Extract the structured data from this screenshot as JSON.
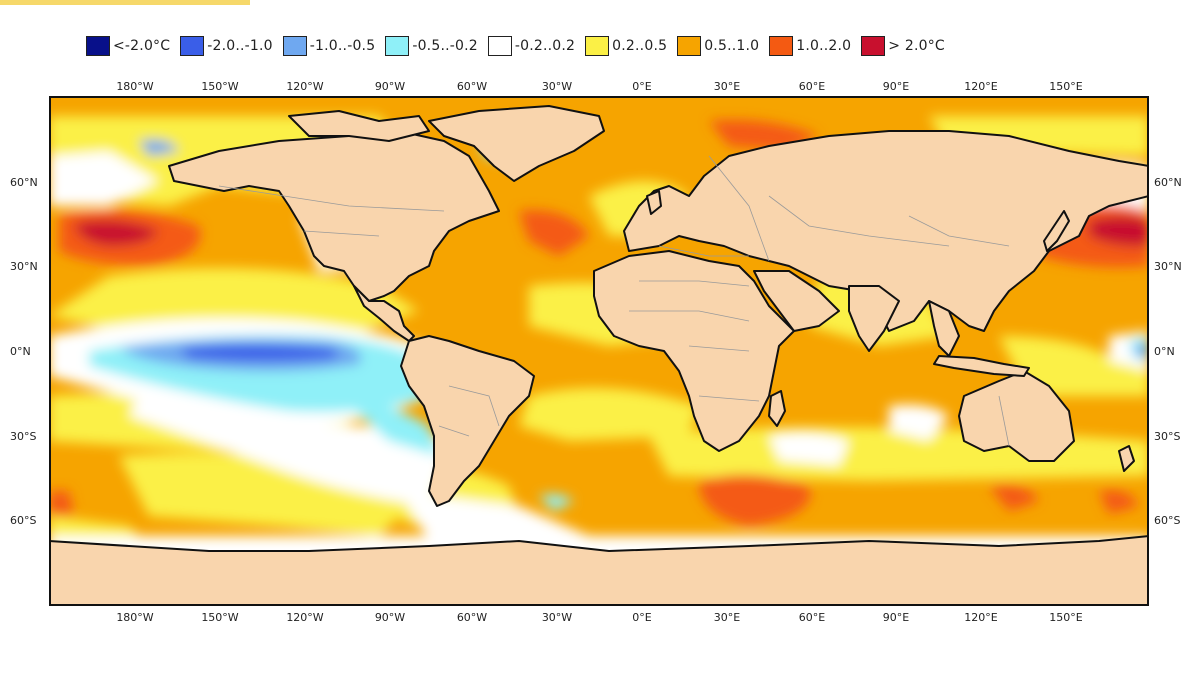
{
  "legend": [
    {
      "label": "<-2.0°C",
      "color": "#08108a"
    },
    {
      "label": "-2.0..-1.0",
      "color": "#3a5ee8"
    },
    {
      "label": "-1.0..-0.5",
      "color": "#6fa8f0"
    },
    {
      "label": "-0.5..-0.2",
      "color": "#8ff0f8"
    },
    {
      "label": "-0.2..0.2",
      "color": "#ffffff"
    },
    {
      "label": "0.2..0.5",
      "color": "#fbf046"
    },
    {
      "label": "0.5..1.0",
      "color": "#f6a400"
    },
    {
      "label": "1.0..2.0",
      "color": "#f45a12"
    },
    {
      "label": "> 2.0°C",
      "color": "#c8102e"
    }
  ],
  "longitude_labels": [
    "180°W",
    "150°W",
    "120°W",
    "90°W",
    "60°W",
    "30°W",
    "0°E",
    "30°E",
    "60°E",
    "90°E",
    "120°E",
    "150°E"
  ],
  "latitude_labels": [
    "60°N",
    "30°N",
    "0°N",
    "30°S",
    "60°S"
  ],
  "colors": {
    "land": "#f9d5ad",
    "coast": "#111111",
    "border": "#9a9a9a"
  }
}
